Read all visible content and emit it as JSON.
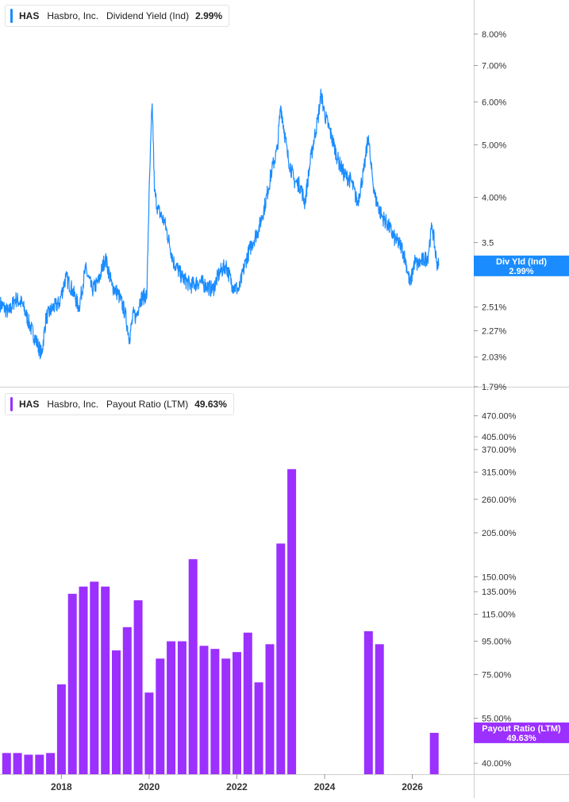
{
  "panels": {
    "top": {
      "ticker": "HAS",
      "company": "Hasbro, Inc.",
      "metric": "Dividend Yield (Ind)",
      "current_value": "2.99%",
      "badge_label": "Div Yld (Ind)",
      "badge_value": "2.99%",
      "color": "#1a8cff"
    },
    "bottom": {
      "ticker": "HAS",
      "company": "Hasbro, Inc.",
      "metric": "Payout Ratio (LTM)",
      "current_value": "49.63%",
      "badge_label": "Payout Ratio (LTM)",
      "badge_value": "49.63%",
      "color": "#9b30ff"
    }
  },
  "chart_data": [
    {
      "type": "line",
      "title": "Hasbro, Inc. Dividend Yield (Ind)",
      "series": [
        {
          "name": "Dividend Yield (Ind)",
          "color": "#1a8cff",
          "x": [
            2016.6,
            2016.8,
            2016.95,
            2017.1,
            2017.3,
            2017.45,
            2017.55,
            2017.65,
            2017.8,
            2017.95,
            2018.1,
            2018.25,
            2018.4,
            2018.55,
            2018.7,
            2018.85,
            2019.0,
            2019.15,
            2019.3,
            2019.45,
            2019.55,
            2019.65,
            2019.7,
            2019.8,
            2019.95,
            2020.07,
            2020.12,
            2020.2,
            2020.35,
            2020.55,
            2020.75,
            2020.95,
            2021.15,
            2021.3,
            2021.45,
            2021.6,
            2021.75,
            2021.9,
            2022.05,
            2022.2,
            2022.35,
            2022.5,
            2022.65,
            2022.8,
            2022.92,
            2023.0,
            2023.15,
            2023.3,
            2023.45,
            2023.55,
            2023.7,
            2023.85,
            2023.92,
            2024.0,
            2024.15,
            2024.3,
            2024.45,
            2024.6,
            2024.75,
            2024.9,
            2025.0,
            2025.05,
            2025.15,
            2025.3,
            2025.45,
            2025.6,
            2025.75,
            2025.85,
            2025.95,
            2026.05,
            2026.12,
            2026.2,
            2026.35,
            2026.45,
            2026.55,
            2026.6
          ],
          "y": [
            2.55,
            2.45,
            2.6,
            2.55,
            2.3,
            2.15,
            2.05,
            2.4,
            2.5,
            2.55,
            2.85,
            2.7,
            2.5,
            2.95,
            2.7,
            2.8,
            3.1,
            2.75,
            2.65,
            2.45,
            2.2,
            2.45,
            2.4,
            2.6,
            2.65,
            5.95,
            4.1,
            3.8,
            3.6,
            3.05,
            2.85,
            2.75,
            2.8,
            2.75,
            2.7,
            2.9,
            3.0,
            2.75,
            2.7,
            3.05,
            3.3,
            3.5,
            3.9,
            4.5,
            4.9,
            5.9,
            4.8,
            4.3,
            4.2,
            3.9,
            4.8,
            5.6,
            6.2,
            5.7,
            5.2,
            4.7,
            4.4,
            4.3,
            3.9,
            4.5,
            5.2,
            4.6,
            4.0,
            3.7,
            3.55,
            3.35,
            3.25,
            3.05,
            2.75,
            3.05,
            3.0,
            3.05,
            3.1,
            3.55,
            3.05,
            2.99
          ]
        }
      ],
      "y_ticks": [
        "8.00%",
        "7.00%",
        "6.00%",
        "5.00%",
        "4.00%",
        "3.5",
        "2.51%",
        "2.27%",
        "2.03%",
        "1.79%"
      ],
      "y_scale": "log",
      "ylim": [
        1.79,
        9.0
      ]
    },
    {
      "type": "bar",
      "title": "Hasbro, Inc. Payout Ratio (LTM)",
      "series": [
        {
          "name": "Payout Ratio (LTM)",
          "color": "#9b30ff",
          "x": [
            2016.75,
            2017.0,
            2017.25,
            2017.5,
            2017.75,
            2018.0,
            2018.25,
            2018.5,
            2018.75,
            2019.0,
            2019.25,
            2019.5,
            2019.75,
            2020.0,
            2020.25,
            2020.5,
            2020.75,
            2021.0,
            2021.25,
            2021.5,
            2021.75,
            2022.0,
            2022.25,
            2022.5,
            2022.75,
            2023.0,
            2023.25,
            2025.0,
            2025.25,
            2026.5
          ],
          "values": [
            43,
            43,
            42.5,
            42.5,
            43,
            70,
            133,
            140,
            145,
            140,
            89,
            105,
            127,
            66,
            84,
            95,
            95,
            170,
            92,
            90,
            84,
            88,
            101,
            71,
            93,
            190,
            322,
            102,
            93,
            49.63
          ]
        }
      ],
      "y_ticks": [
        "470.00%",
        "405.00%",
        "370.00%",
        "315.00%",
        "260.00%",
        "205.00%",
        "150.00%",
        "135.00%",
        "115.00%",
        "95.00%",
        "75.00%",
        "55.00%",
        "40.00%"
      ],
      "x_ticks": [
        "2018",
        "2020",
        "2022",
        "2024",
        "2026"
      ],
      "y_scale": "log",
      "ylim": [
        37,
        540
      ]
    }
  ]
}
